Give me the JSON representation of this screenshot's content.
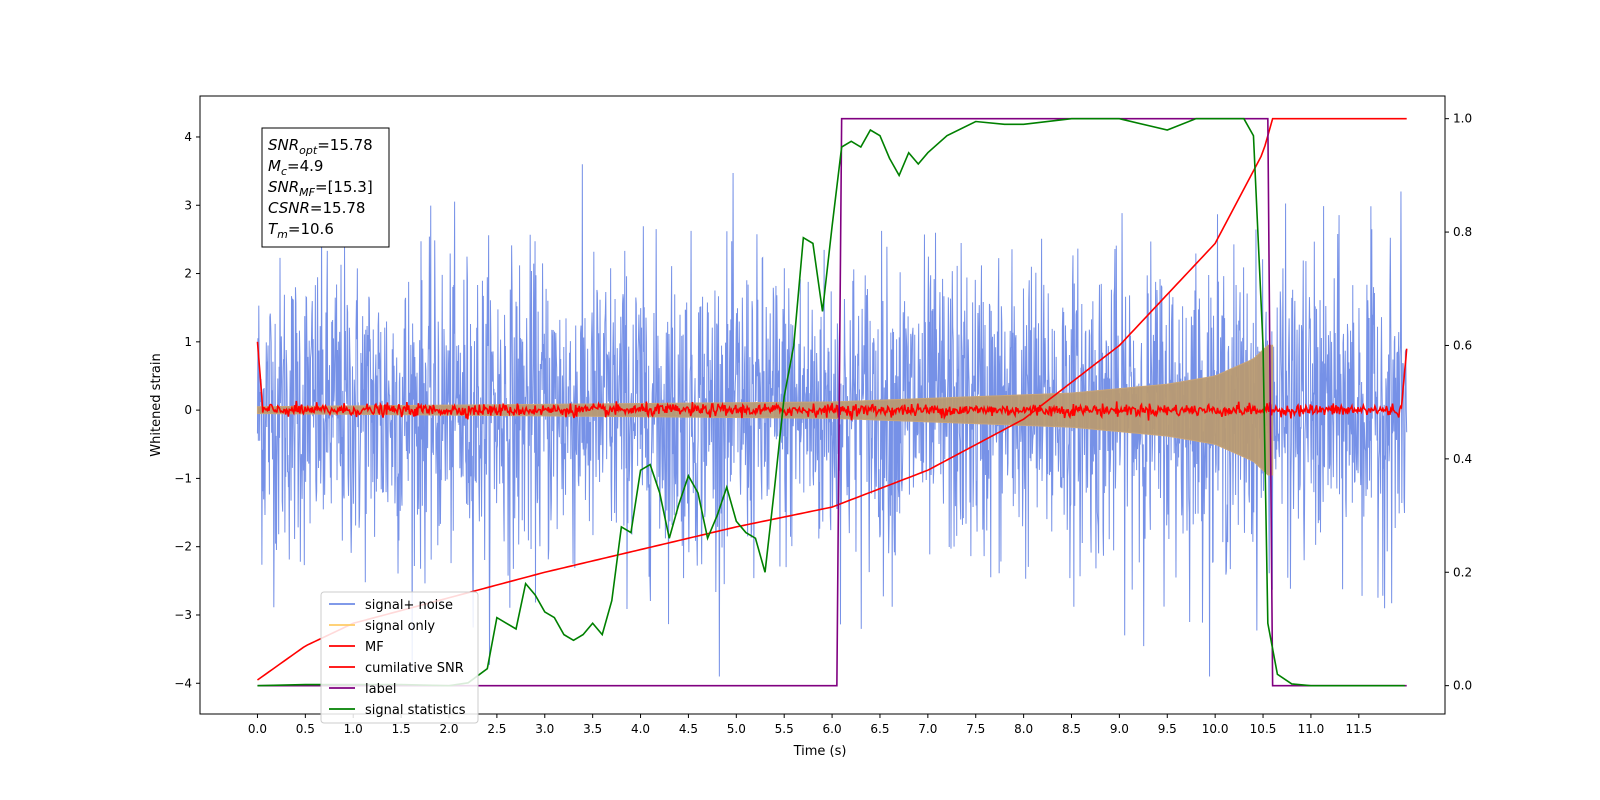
{
  "chart_data": {
    "type": "line",
    "xlabel": "Time (s)",
    "ylabel": "Whitened strain",
    "xlim": [
      -0.6,
      12.4
    ],
    "ylim": [
      -4.45,
      4.6
    ],
    "ylim_right": [
      -0.05,
      1.04
    ],
    "x_ticks": [
      "0.0",
      "0.5",
      "1.0",
      "1.5",
      "2.0",
      "2.5",
      "3.0",
      "3.5",
      "4.0",
      "4.5",
      "5.0",
      "5.5",
      "6.0",
      "6.5",
      "7.0",
      "7.5",
      "8.0",
      "8.5",
      "9.0",
      "9.5",
      "10.0",
      "10.5",
      "11.0",
      "11.5"
    ],
    "y_ticks_left": [
      "−4",
      "−3",
      "−2",
      "−1",
      "0",
      "1",
      "2",
      "3",
      "4"
    ],
    "y_ticks_right": [
      "0.0",
      "0.2",
      "0.4",
      "0.6",
      "0.8",
      "1.0"
    ],
    "legend_position": "lower-left",
    "legend": [
      {
        "label": "signal+ noise",
        "color": "#6f8be6"
      },
      {
        "label": "signal only",
        "color": "#ffcc66"
      },
      {
        "label": "MF",
        "color": "#ff0000"
      },
      {
        "label": "cumilative SNR",
        "color": "#ff0000"
      },
      {
        "label": "label",
        "color": "#800080"
      },
      {
        "label": "signal statistics",
        "color": "#008000"
      }
    ],
    "info_box": [
      {
        "sym": "SNR",
        "sub": "opt",
        "text": "=15.78"
      },
      {
        "sym": "M",
        "sub": "c",
        "text": "=4.9"
      },
      {
        "sym": "SNR",
        "sub": "MF",
        "text": "=[15.3]"
      },
      {
        "sym": "CSNR",
        "sub": "",
        "text": "=15.78"
      },
      {
        "sym": "T",
        "sub": "m",
        "text": "=10.6"
      }
    ],
    "signal_noise": {
      "t_range": [
        0.0,
        12.0
      ],
      "amplitude_std": 1.1,
      "range": [
        -3.9,
        3.6
      ]
    },
    "signal_only": {
      "t_range": [
        0.0,
        10.6
      ],
      "envelope": [
        [
          0.0,
          0.05
        ],
        [
          6.0,
          0.12
        ],
        [
          8.5,
          0.25
        ],
        [
          9.5,
          0.38
        ],
        [
          10.0,
          0.5
        ],
        [
          10.4,
          0.75
        ],
        [
          10.55,
          0.95
        ]
      ]
    },
    "mf": {
      "t_range": [
        0.0,
        12.0
      ],
      "baseline": 0.0,
      "jitter": 0.1,
      "start_value": 1.0,
      "end_value": 0.9
    },
    "cumulative_snr": {
      "t_cross": 10.6,
      "points": [
        [
          0.0,
          0.01
        ],
        [
          0.5,
          0.07
        ],
        [
          1.0,
          0.11
        ],
        [
          2.0,
          0.155
        ],
        [
          3.0,
          0.2
        ],
        [
          4.0,
          0.24
        ],
        [
          5.0,
          0.28
        ],
        [
          6.0,
          0.315
        ],
        [
          7.0,
          0.38
        ],
        [
          8.0,
          0.47
        ],
        [
          9.0,
          0.6
        ],
        [
          10.0,
          0.78
        ],
        [
          10.5,
          0.94
        ],
        [
          10.6,
          1.0
        ],
        [
          12.0,
          1.0
        ]
      ]
    },
    "label": {
      "points": [
        [
          0.0,
          0.0
        ],
        [
          6.05,
          0.0
        ],
        [
          6.1,
          1.0
        ],
        [
          10.55,
          1.0
        ],
        [
          10.6,
          0.0
        ],
        [
          12.0,
          0.0
        ]
      ]
    },
    "signal_statistics": {
      "points": [
        [
          0.0,
          0.0
        ],
        [
          0.5,
          0.002
        ],
        [
          1.5,
          0.002
        ],
        [
          2.0,
          0.0
        ],
        [
          2.2,
          0.005
        ],
        [
          2.4,
          0.03
        ],
        [
          2.5,
          0.12
        ],
        [
          2.6,
          0.11
        ],
        [
          2.7,
          0.1
        ],
        [
          2.8,
          0.18
        ],
        [
          2.9,
          0.16
        ],
        [
          3.0,
          0.13
        ],
        [
          3.1,
          0.12
        ],
        [
          3.2,
          0.09
        ],
        [
          3.3,
          0.08
        ],
        [
          3.4,
          0.09
        ],
        [
          3.5,
          0.11
        ],
        [
          3.6,
          0.09
        ],
        [
          3.7,
          0.15
        ],
        [
          3.8,
          0.28
        ],
        [
          3.9,
          0.27
        ],
        [
          4.0,
          0.38
        ],
        [
          4.1,
          0.39
        ],
        [
          4.2,
          0.34
        ],
        [
          4.3,
          0.26
        ],
        [
          4.4,
          0.32
        ],
        [
          4.5,
          0.37
        ],
        [
          4.6,
          0.34
        ],
        [
          4.7,
          0.26
        ],
        [
          4.8,
          0.3
        ],
        [
          4.9,
          0.35
        ],
        [
          5.0,
          0.29
        ],
        [
          5.1,
          0.27
        ],
        [
          5.2,
          0.26
        ],
        [
          5.3,
          0.2
        ],
        [
          5.4,
          0.35
        ],
        [
          5.5,
          0.51
        ],
        [
          5.6,
          0.6
        ],
        [
          5.7,
          0.79
        ],
        [
          5.8,
          0.78
        ],
        [
          5.9,
          0.66
        ],
        [
          6.0,
          0.81
        ],
        [
          6.1,
          0.95
        ],
        [
          6.2,
          0.96
        ],
        [
          6.3,
          0.95
        ],
        [
          6.4,
          0.98
        ],
        [
          6.5,
          0.97
        ],
        [
          6.6,
          0.93
        ],
        [
          6.7,
          0.9
        ],
        [
          6.8,
          0.94
        ],
        [
          6.9,
          0.92
        ],
        [
          7.0,
          0.94
        ],
        [
          7.2,
          0.97
        ],
        [
          7.5,
          0.995
        ],
        [
          7.8,
          0.99
        ],
        [
          8.0,
          0.99
        ],
        [
          8.5,
          1.0
        ],
        [
          9.0,
          1.0
        ],
        [
          9.5,
          0.98
        ],
        [
          9.8,
          1.0
        ],
        [
          10.3,
          1.0
        ],
        [
          10.4,
          0.97
        ],
        [
          10.5,
          0.6
        ],
        [
          10.55,
          0.11
        ],
        [
          10.65,
          0.02
        ],
        [
          10.8,
          0.003
        ],
        [
          11.0,
          0.0
        ],
        [
          11.98,
          0.0
        ]
      ]
    }
  }
}
